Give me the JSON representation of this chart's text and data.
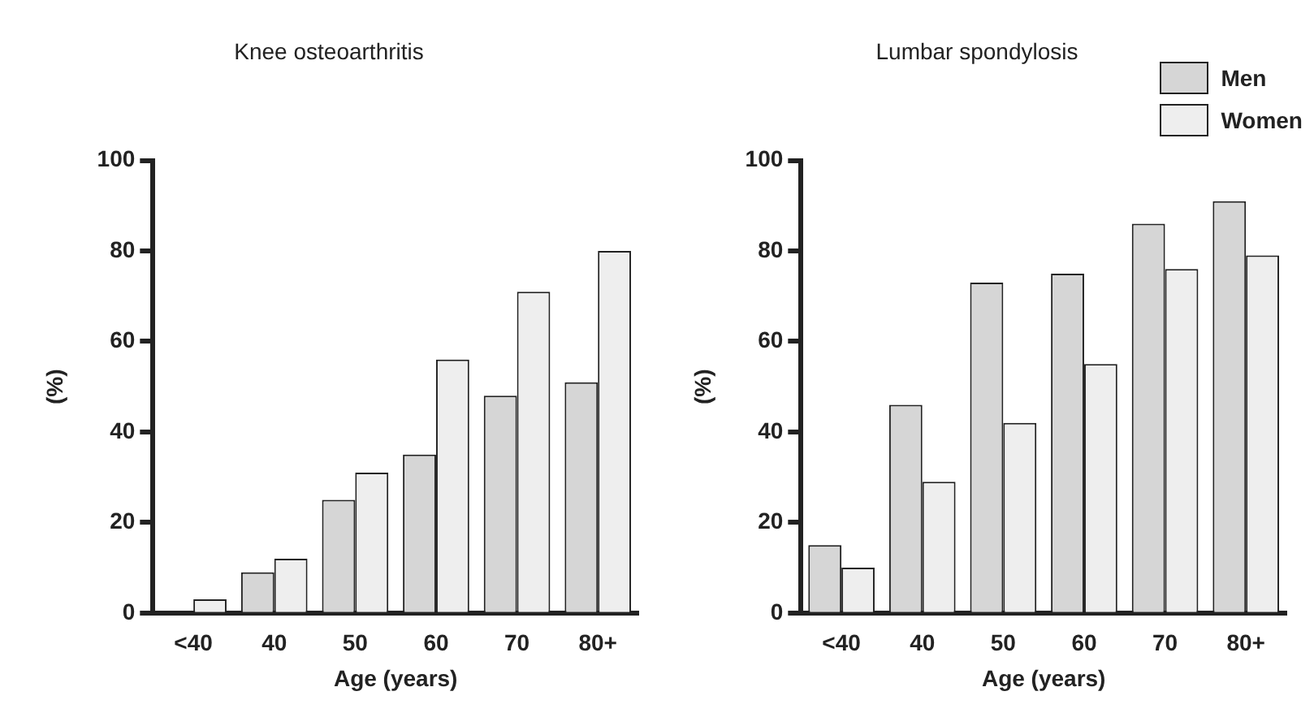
{
  "chart_data": [
    {
      "type": "bar",
      "title": "Knee osteoarthritis",
      "xlabel": "Age (years)",
      "ylabel": "(%)",
      "categories": [
        "<40",
        "40",
        "50",
        "60",
        "70",
        "80+"
      ],
      "series": [
        {
          "color": "#d6d6d6",
          "values": [
            0,
            9,
            25,
            35,
            48,
            51
          ]
        },
        {
          "color": "#eeeeee",
          "values": [
            3,
            12,
            31,
            56,
            71,
            80
          ]
        }
      ],
      "ylim": [
        0,
        100
      ],
      "yticks": [
        0,
        20,
        40,
        60,
        80,
        100
      ],
      "grid": false,
      "legend": false
    },
    {
      "type": "bar",
      "title": "Lumbar spondylosis",
      "xlabel": "Age (years)",
      "ylabel": "(%)",
      "categories": [
        "<40",
        "40",
        "50",
        "60",
        "70",
        "80+"
      ],
      "series": [
        {
          "name": "Men",
          "color": "#d6d6d6",
          "values": [
            15,
            46,
            73,
            75,
            86,
            91
          ]
        },
        {
          "name": "Women",
          "color": "#eeeeee",
          "values": [
            10,
            29,
            42,
            55,
            76,
            79
          ]
        }
      ],
      "ylim": [
        0,
        100
      ],
      "yticks": [
        0,
        20,
        40,
        60,
        80,
        100
      ],
      "grid": false,
      "legend": "top right"
    }
  ]
}
